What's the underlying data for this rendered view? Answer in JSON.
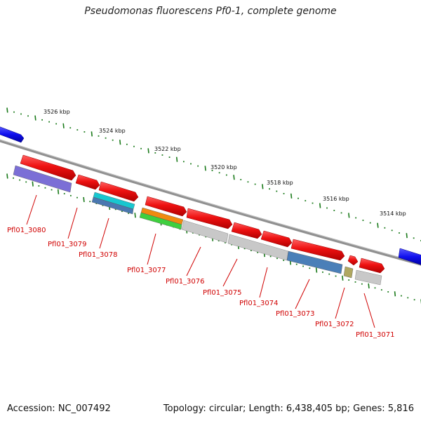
{
  "title": "Pseudomonas fluorescens Pf0-1, complete genome",
  "accession": "Accession: NC_007492",
  "stats": "Topology: circular; Length: 6,438,405 bp; Genes: 5,816",
  "colors": {
    "gene_forward": "#ee1111",
    "gene_edge": "#aa0000",
    "label": "#d00000",
    "backbone": "#808080",
    "tick": "#1a7a1a",
    "neighbor": "#1010ee"
  },
  "kbp_labels": [
    "3526 kbp",
    "3524 kbp",
    "3522 kbp",
    "3520 kbp",
    "3518 kbp",
    "3516 kbp",
    "3514 kbp"
  ],
  "genes": [
    {
      "id": "Pfl01_3080",
      "cog_color": "#7b6fd6"
    },
    {
      "id": "Pfl01_3079",
      "cog_color": null
    },
    {
      "id": "Pfl01_3078",
      "cog_color": "#18c7d0",
      "cog_color2": "#4a78b0"
    },
    {
      "id": "Pfl01_3077",
      "cog_color": "#f08a10",
      "cog_color2": "#3fcf3f"
    },
    {
      "id": "Pfl01_3076",
      "cog_color": "#c8c8c8"
    },
    {
      "id": "Pfl01_3075",
      "cog_color": "#c8c8c8"
    },
    {
      "id": "Pfl01_3074",
      "cog_color": "#c8c8c8"
    },
    {
      "id": "Pfl01_3073",
      "cog_color": "#4a7fb8"
    },
    {
      "id": "Pfl01_3072",
      "cog_color": "#b0a860"
    },
    {
      "id": "Pfl01_3071",
      "cog_color": "#c8c8c8"
    }
  ]
}
